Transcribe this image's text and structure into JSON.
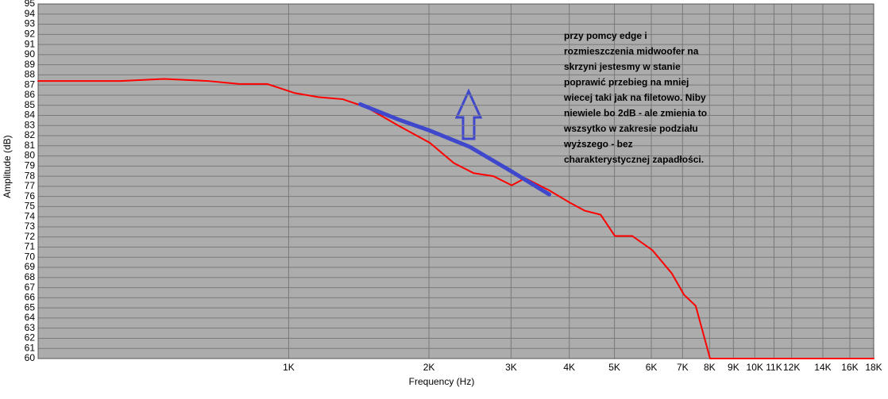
{
  "chart_data": {
    "type": "line",
    "xlabel": "Frequency (Hz)",
    "ylabel": "Amplitude (dB)",
    "xscale": "log",
    "grid": true,
    "xlim": [
      290,
      18000
    ],
    "ylim": [
      60,
      95
    ],
    "xticks": [
      {
        "value": 1000,
        "label": "1K"
      },
      {
        "value": 2000,
        "label": "2K"
      },
      {
        "value": 3000,
        "label": "3K"
      },
      {
        "value": 4000,
        "label": "4K"
      },
      {
        "value": 5000,
        "label": "5K"
      },
      {
        "value": 6000,
        "label": "6K"
      },
      {
        "value": 7000,
        "label": "7K"
      },
      {
        "value": 8000,
        "label": "8K"
      },
      {
        "value": 9000,
        "label": "9K"
      },
      {
        "value": 10000,
        "label": "10K"
      },
      {
        "value": 11000,
        "label": "11K"
      },
      {
        "value": 12000,
        "label": "12K"
      },
      {
        "value": 14000,
        "label": "14K"
      },
      {
        "value": 16000,
        "label": "16K"
      },
      {
        "value": 18000,
        "label": "18K"
      }
    ],
    "yticks": [
      60,
      61,
      62,
      63,
      64,
      65,
      66,
      67,
      68,
      69,
      70,
      71,
      72,
      73,
      74,
      75,
      76,
      77,
      78,
      79,
      80,
      81,
      82,
      83,
      84,
      85,
      86,
      87,
      88,
      89,
      90,
      91,
      92,
      93,
      94,
      95
    ],
    "series": [
      {
        "color": "#ff0000",
        "x": [
          290,
          435,
          540,
          670,
          784,
          900,
          1032,
          1161,
          1306,
          1469,
          1718,
          2008,
          2261,
          2494,
          2750,
          3010,
          3217,
          3623,
          4008,
          4316,
          4670,
          5010,
          5460,
          6030,
          6640,
          7050,
          7470,
          8020,
          18000
        ],
        "values": [
          87.4,
          87.4,
          87.6,
          87.4,
          87.1,
          87.1,
          86.2,
          85.8,
          85.6,
          84.8,
          83.0,
          81.3,
          79.3,
          78.3,
          78.0,
          77.1,
          77.8,
          76.6,
          75.4,
          74.6,
          74.2,
          72.1,
          72.1,
          70.7,
          68.4,
          66.3,
          65.2,
          60,
          60
        ]
      },
      {
        "color": "#3f48cc",
        "x": [
          1424,
          1718,
          2008,
          2446,
          2975,
          3623
        ],
        "values": [
          85.1,
          83.6,
          82.5,
          80.9,
          78.6,
          76.2
        ]
      }
    ],
    "annotation": [
      "przy pomcy edge i",
      "rozmieszczenia midwoofer na",
      "skrzyni jestesmy w stanie",
      "poprawić przebieg na mniej",
      "wiecej taki jak na filetowo. Niby",
      "niewiele bo 2dB - ale zmienia to",
      "wszsytko w zakresie podziału",
      "wyższego - bez",
      "charakterystycznej zapadłości."
    ]
  }
}
